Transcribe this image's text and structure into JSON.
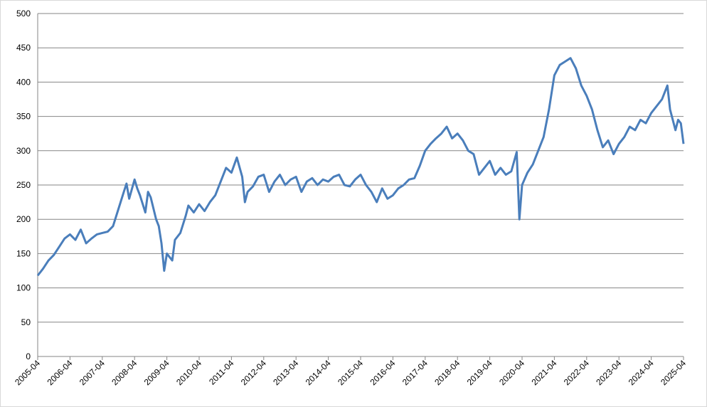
{
  "chart_data": {
    "type": "line",
    "x": [
      "2005-04",
      "2005-06",
      "2005-08",
      "2005-10",
      "2005-12",
      "2006-02",
      "2006-04",
      "2006-06",
      "2006-08",
      "2006-10",
      "2006-12",
      "2007-02",
      "2007-04",
      "2007-06",
      "2007-08",
      "2007-10",
      "2007-12",
      "2008-01",
      "2008-02",
      "2008-04",
      "2008-05",
      "2008-06",
      "2008-08",
      "2008-09",
      "2008-10",
      "2008-12",
      "2009-01",
      "2009-02",
      "2009-03",
      "2009-04",
      "2009-06",
      "2009-07",
      "2009-09",
      "2009-11",
      "2009-12",
      "2010-02",
      "2010-04",
      "2010-06",
      "2010-08",
      "2010-10",
      "2010-12",
      "2011-02",
      "2011-04",
      "2011-06",
      "2011-08",
      "2011-09",
      "2011-10",
      "2011-12",
      "2012-02",
      "2012-04",
      "2012-06",
      "2012-08",
      "2012-10",
      "2012-12",
      "2013-02",
      "2013-04",
      "2013-06",
      "2013-08",
      "2013-10",
      "2013-12",
      "2014-02",
      "2014-04",
      "2014-06",
      "2014-08",
      "2014-10",
      "2014-12",
      "2015-02",
      "2015-04",
      "2015-06",
      "2015-08",
      "2015-10",
      "2015-12",
      "2016-02",
      "2016-04",
      "2016-06",
      "2016-08",
      "2016-10",
      "2016-12",
      "2017-02",
      "2017-04",
      "2017-06",
      "2017-08",
      "2017-10",
      "2017-12",
      "2018-02",
      "2018-04",
      "2018-06",
      "2018-08",
      "2018-10",
      "2018-12",
      "2019-02",
      "2019-04",
      "2019-06",
      "2019-08",
      "2019-10",
      "2019-12",
      "2020-02",
      "2020-03",
      "2020-04",
      "2020-06",
      "2020-08",
      "2020-10",
      "2020-12",
      "2021-02",
      "2021-04",
      "2021-06",
      "2021-08",
      "2021-10",
      "2021-12",
      "2022-02",
      "2022-04",
      "2022-06",
      "2022-08",
      "2022-10",
      "2022-12",
      "2023-02",
      "2023-04",
      "2023-06",
      "2023-08",
      "2023-10",
      "2023-12",
      "2024-02",
      "2024-04",
      "2024-06",
      "2024-08",
      "2024-10",
      "2024-11",
      "2024-12",
      "2025-01",
      "2025-02",
      "2025-03",
      "2025-04"
    ],
    "series": [
      {
        "color": "#4a7ebb",
        "values": [
          118,
          128,
          140,
          148,
          160,
          172,
          178,
          170,
          185,
          165,
          172,
          178,
          180,
          182,
          190,
          215,
          240,
          252,
          230,
          258,
          245,
          235,
          210,
          240,
          232,
          200,
          190,
          165,
          125,
          150,
          140,
          170,
          180,
          205,
          220,
          210,
          222,
          212,
          225,
          235,
          255,
          275,
          268,
          290,
          262,
          225,
          240,
          248,
          262,
          265,
          240,
          255,
          265,
          250,
          258,
          262,
          240,
          255,
          260,
          250,
          258,
          255,
          262,
          265,
          250,
          248,
          258,
          265,
          250,
          240,
          225,
          245,
          230,
          235,
          245,
          250,
          258,
          260,
          278,
          300,
          310,
          318,
          325,
          335,
          318,
          325,
          315,
          300,
          295,
          265,
          275,
          285,
          265,
          275,
          265,
          270,
          298,
          200,
          250,
          268,
          280,
          300,
          320,
          360,
          410,
          425,
          430,
          435,
          420,
          395,
          380,
          360,
          330,
          305,
          315,
          295,
          310,
          320,
          335,
          330,
          345,
          340,
          355,
          365,
          375,
          395,
          360,
          345,
          330,
          345,
          340,
          310
        ]
      }
    ],
    "xlim": [
      "2005-04",
      "2025-04"
    ],
    "xticks": [
      "2005-04",
      "2006-04",
      "2007-04",
      "2008-04",
      "2009-04",
      "2010-04",
      "2011-04",
      "2012-04",
      "2013-04",
      "2014-04",
      "2015-04",
      "2016-04",
      "2017-04",
      "2018-04",
      "2019-04",
      "2020-04",
      "2021-04",
      "2022-04",
      "2023-04",
      "2024-04",
      "2025-04"
    ],
    "ylim": [
      0,
      500
    ],
    "yticks": [
      0,
      50,
      100,
      150,
      200,
      250,
      300,
      350,
      400,
      450,
      500
    ],
    "grid": true
  }
}
